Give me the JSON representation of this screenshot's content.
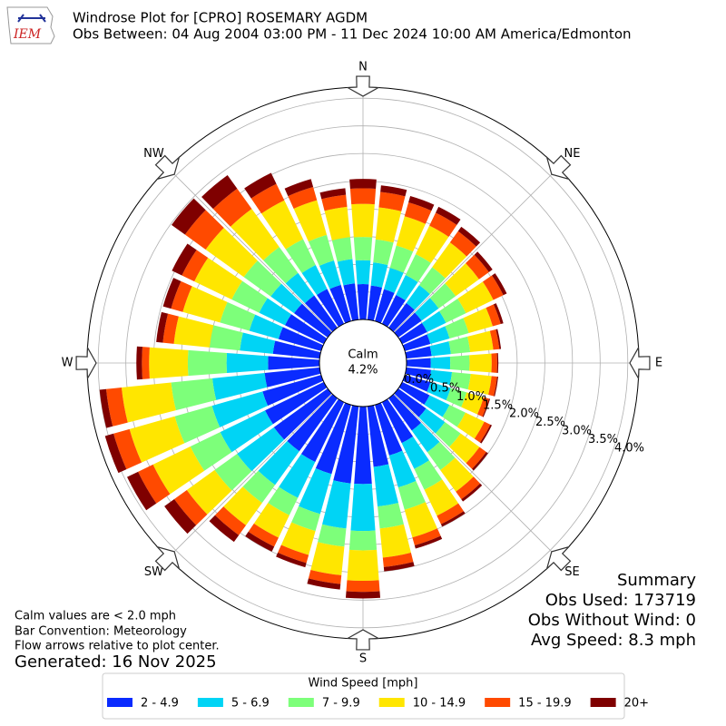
{
  "chart_data": {
    "type": "windrose",
    "title": "Windrose Plot for [CPRO] ROSEMARY AGDM",
    "subtitle": "Obs Between: 04 Aug 2004 03:00 PM - 11 Dec 2024 10:00 AM America/Edmonton",
    "logo_text": "IEM",
    "compass_labels": [
      "N",
      "NE",
      "E",
      "SE",
      "S",
      "SW",
      "W",
      "NW"
    ],
    "calm": {
      "label": "Calm",
      "value": 4.2,
      "value_label": "4.2%"
    },
    "ylim": [
      0,
      4.2
    ],
    "yticks": [
      {
        "value": 0,
        "label": "0.0%"
      },
      {
        "value": 0.5,
        "label": "0.5%"
      },
      {
        "value": 1,
        "label": "1.0%"
      },
      {
        "value": 1.5,
        "label": "1.5%"
      },
      {
        "value": 2,
        "label": "2.0%"
      },
      {
        "value": 2.5,
        "label": "2.5%"
      },
      {
        "value": 3,
        "label": "3.0%"
      },
      {
        "value": 3.5,
        "label": "3.5%"
      },
      {
        "value": 4,
        "label": "4.0%"
      }
    ],
    "grid": true,
    "legend_title": "Wind Speed [mph]",
    "series": [
      {
        "name": "2 - 4.9",
        "color": "#0a2bff",
        "values": [
          0.64,
          0.62,
          0.6,
          0.58,
          0.55,
          0.52,
          0.5,
          0.48,
          0.46,
          0.44,
          0.45,
          0.48,
          0.55,
          0.62,
          0.72,
          0.82,
          0.95,
          1.1,
          1.4,
          1.4,
          1.3,
          1.2,
          1.18,
          1.2,
          1.18,
          1.1,
          1.0,
          0.93,
          0.85,
          0.8,
          0.78,
          0.75,
          0.72,
          0.7,
          0.68,
          0.66
        ]
      },
      {
        "name": "5 - 6.9",
        "color": "#00d4f5",
        "values": [
          0.43,
          0.42,
          0.4,
          0.4,
          0.4,
          0.38,
          0.38,
          0.36,
          0.35,
          0.35,
          0.38,
          0.38,
          0.4,
          0.42,
          0.48,
          0.52,
          0.6,
          0.72,
          0.85,
          0.82,
          0.75,
          0.72,
          0.75,
          0.82,
          0.9,
          0.95,
          0.95,
          0.75,
          0.6,
          0.55,
          0.52,
          0.52,
          0.5,
          0.48,
          0.46,
          0.44
        ]
      },
      {
        "name": "7 - 9.9",
        "color": "#7dff7a",
        "values": [
          0.42,
          0.42,
          0.42,
          0.42,
          0.4,
          0.38,
          0.4,
          0.36,
          0.35,
          0.35,
          0.34,
          0.3,
          0.32,
          0.35,
          0.4,
          0.42,
          0.42,
          0.4,
          0.35,
          0.33,
          0.32,
          0.35,
          0.4,
          0.5,
          0.6,
          0.7,
          0.75,
          0.7,
          0.55,
          0.55,
          0.55,
          0.6,
          0.58,
          0.52,
          0.48,
          0.4
        ]
      },
      {
        "name": "10 - 14.9",
        "color": "#ffe600",
        "values": [
          0.6,
          0.58,
          0.55,
          0.57,
          0.55,
          0.52,
          0.55,
          0.45,
          0.42,
          0.4,
          0.38,
          0.32,
          0.38,
          0.42,
          0.48,
          0.52,
          0.52,
          0.53,
          0.55,
          0.52,
          0.45,
          0.45,
          0.5,
          0.62,
          0.75,
          0.85,
          0.9,
          0.7,
          0.65,
          0.7,
          0.75,
          0.85,
          0.85,
          0.78,
          0.65,
          0.55
        ]
      },
      {
        "name": "15 - 19.9",
        "color": "#ff4a00",
        "values": [
          0.28,
          0.28,
          0.26,
          0.26,
          0.25,
          0.22,
          0.2,
          0.15,
          0.11,
          0.1,
          0.1,
          0.1,
          0.12,
          0.15,
          0.17,
          0.17,
          0.15,
          0.17,
          0.2,
          0.16,
          0.15,
          0.18,
          0.22,
          0.28,
          0.3,
          0.3,
          0.28,
          0.13,
          0.2,
          0.22,
          0.25,
          0.46,
          0.45,
          0.33,
          0.25,
          0.22
        ]
      },
      {
        "name": "20+",
        "color": "#7f0000",
        "values": [
          0.17,
          0.12,
          0.12,
          0.12,
          0.1,
          0.08,
          0.07,
          0.05,
          0.03,
          0.02,
          0.02,
          0.02,
          0.03,
          0.04,
          0.05,
          0.05,
          0.06,
          0.08,
          0.12,
          0.1,
          0.08,
          0.1,
          0.15,
          0.22,
          0.22,
          0.16,
          0.12,
          0.1,
          0.12,
          0.15,
          0.2,
          0.3,
          0.3,
          0.22,
          0.15,
          0.12
        ]
      }
    ],
    "notes": [
      "Calm values are < 2.0 mph",
      "Bar Convention: Meteorology",
      "Flow arrows relative to plot center."
    ],
    "generated": "Generated: 16 Nov 2025",
    "summary": [
      "Summary",
      "Obs Used: 173719",
      "Obs Without Wind: 0",
      "Avg Speed: 8.3 mph"
    ]
  }
}
